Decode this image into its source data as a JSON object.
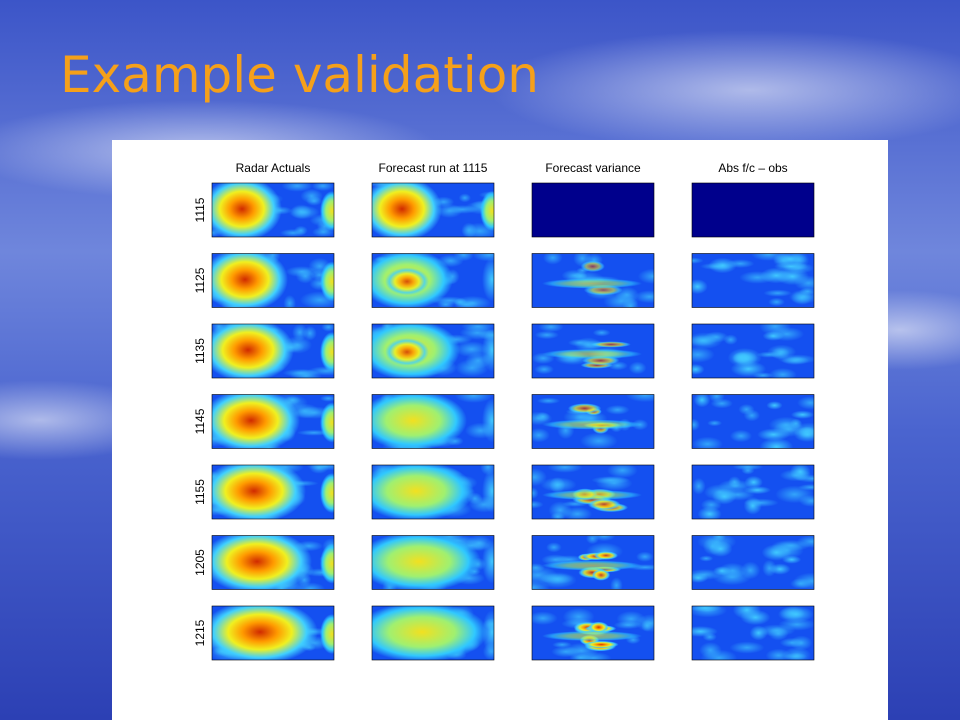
{
  "title": "Example validation",
  "figure": {
    "columns": [
      "Radar Actuals",
      "Forecast run at 1115",
      "Forecast variance",
      "Abs f/c – obs"
    ],
    "rows": [
      "1115",
      "1125",
      "1135",
      "1145",
      "1155",
      "1205",
      "1215"
    ]
  }
}
